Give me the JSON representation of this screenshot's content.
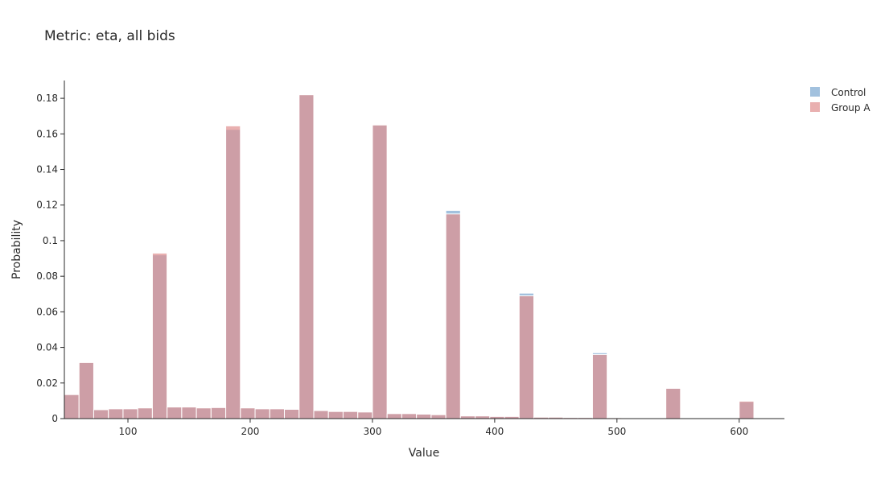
{
  "chart_data": {
    "type": "bar",
    "subtype": "overlaid-histogram",
    "title": "Metric: eta, all bids",
    "xlabel": "Value",
    "ylabel": "Probability",
    "xlim": [
      48,
      637
    ],
    "ylim": [
      0,
      0.19
    ],
    "bin_width": 12,
    "bin_start": 48,
    "x_ticks": [
      100,
      200,
      300,
      400,
      500,
      600
    ],
    "y_ticks": [
      0,
      0.02,
      0.04,
      0.06,
      0.08,
      0.1,
      0.12,
      0.14,
      0.16,
      0.18
    ],
    "y_tick_labels": [
      "0",
      "0.02",
      "0.04",
      "0.06",
      "0.08",
      "0.1",
      "0.12",
      "0.14",
      "0.16",
      "0.18"
    ],
    "grid": false,
    "legend_position": "top-right",
    "colors": {
      "Control": "#7aa6d0",
      "Group A": "#e08f8f",
      "overlap": "#b98f99",
      "bar_edge": "#ffffff",
      "axis": "#2a2a2a"
    },
    "series": [
      {
        "name": "Control",
        "values": [
          0.0135,
          0.0315,
          0.005,
          0.0055,
          0.0055,
          0.006,
          0.092,
          0.0065,
          0.0065,
          0.006,
          0.0062,
          0.1625,
          0.006,
          0.0055,
          0.0055,
          0.0052,
          0.182,
          0.0045,
          0.004,
          0.004,
          0.0037,
          0.165,
          0.0028,
          0.0028,
          0.0025,
          0.0022,
          0.117,
          0.0015,
          0.0015,
          0.0012,
          0.0012,
          0.0705,
          0.0008,
          0.0008,
          0.0006,
          0.0006,
          0.037,
          0.0005,
          0.0004,
          0.0004,
          0.0003,
          0.017,
          0.0002,
          0.0002,
          0.0002,
          0.0002,
          0.0095
        ]
      },
      {
        "name": "Group A",
        "values": [
          0.0135,
          0.0315,
          0.005,
          0.0055,
          0.0055,
          0.006,
          0.093,
          0.0065,
          0.0065,
          0.006,
          0.0062,
          0.1645,
          0.006,
          0.0055,
          0.0055,
          0.0052,
          0.182,
          0.0045,
          0.004,
          0.004,
          0.0037,
          0.165,
          0.0028,
          0.0028,
          0.0025,
          0.0022,
          0.115,
          0.0015,
          0.0015,
          0.0012,
          0.0012,
          0.069,
          0.0008,
          0.0008,
          0.0006,
          0.0006,
          0.036,
          0.0005,
          0.0004,
          0.0004,
          0.0003,
          0.017,
          0.0002,
          0.0002,
          0.0002,
          0.0002,
          0.0098
        ]
      }
    ]
  }
}
